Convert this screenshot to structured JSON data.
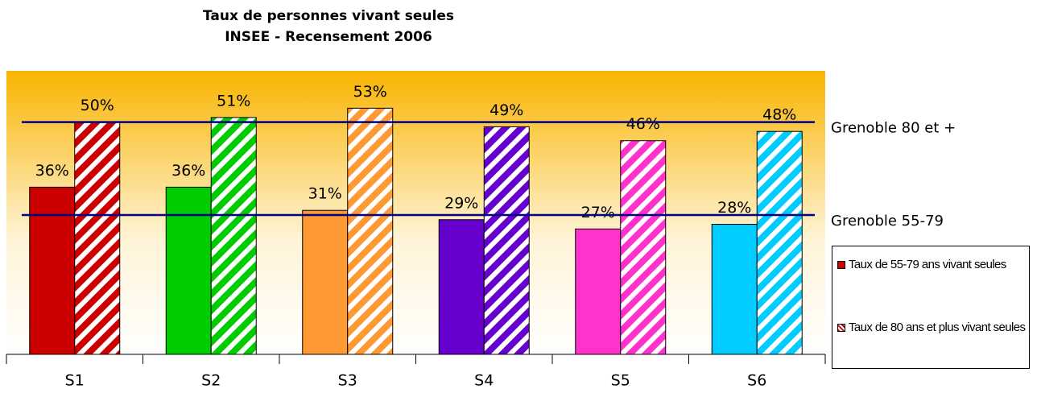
{
  "chart_data": {
    "type": "bar",
    "title": "Taux de personnes vivant seules",
    "subtitle": "INSEE - Recensement 2006",
    "categories": [
      "S1",
      "S2",
      "S3",
      "S4",
      "S5",
      "S6"
    ],
    "series": [
      {
        "name": "Taux de 55-79 ans vivant seules",
        "hatched": false,
        "colors": [
          "#cc0000",
          "#00cc00",
          "#ff9933",
          "#6600cc",
          "#ff33cc",
          "#00ccff"
        ],
        "values": [
          36,
          36,
          31,
          29,
          27,
          28
        ],
        "value_labels": [
          "36%",
          "36%",
          "31%",
          "29%",
          "27%",
          "28%"
        ]
      },
      {
        "name": "Taux de 80 ans et plus vivant seules",
        "hatched": true,
        "colors": [
          "#cc0000",
          "#00cc00",
          "#ff9933",
          "#6600cc",
          "#ff33cc",
          "#00ccff"
        ],
        "values": [
          50,
          51,
          53,
          49,
          46,
          48
        ],
        "value_labels": [
          "50%",
          "51%",
          "53%",
          "49%",
          "46%",
          "48%"
        ]
      }
    ],
    "reference_lines": [
      {
        "label": "Grenoble 80 et +",
        "value": 50,
        "color": "#000080"
      },
      {
        "label": "Grenoble 55-79",
        "value": 30,
        "color": "#000080"
      }
    ],
    "ylim": [
      0,
      60
    ]
  }
}
